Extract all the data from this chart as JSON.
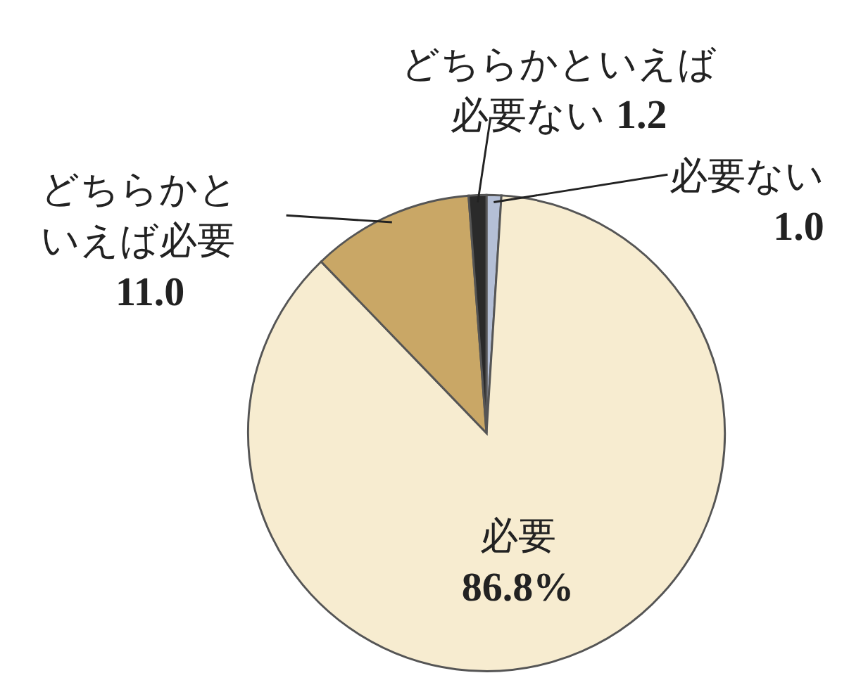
{
  "chart_data": {
    "type": "pie",
    "categories": [
      "必要ない",
      "必要",
      "どちらかといえば必要",
      "どちらかといえば必要ない"
    ],
    "values": [
      1.0,
      86.8,
      11.0,
      1.2
    ],
    "colors": [
      "#b4bfd6",
      "#f7ecd0",
      "#c9a766",
      "#2a2a2a"
    ],
    "value_labels": [
      "1.0",
      "86.8%",
      "11.0",
      "1.2"
    ]
  }
}
